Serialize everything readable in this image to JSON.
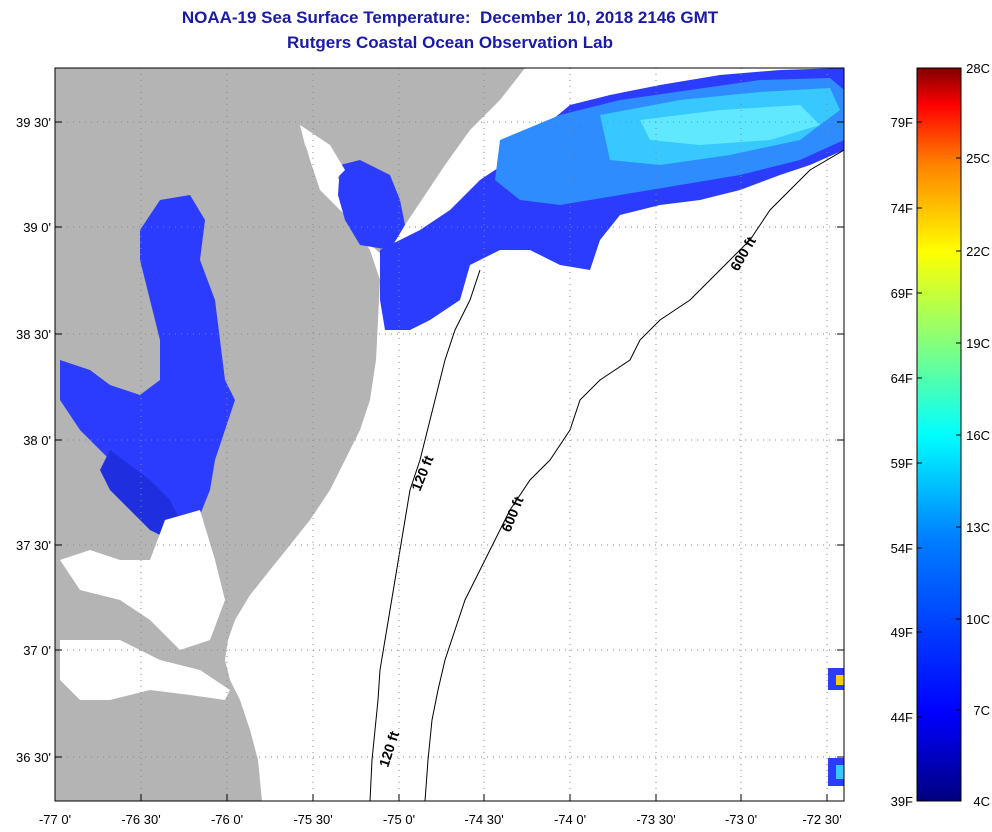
{
  "title_line1": "NOAA-19 Sea Surface Temperature:  December 10, 2018 2146 GMT",
  "title_line2": "Rutgers Coastal Ocean Observation Lab",
  "map": {
    "lat_labels": [
      "39 30'",
      "39 0'",
      "38 30'",
      "38 0'",
      "37 30'",
      "37 0'",
      "36 30'"
    ],
    "lon_labels": [
      "-77 0'",
      "-76 30'",
      "-76 0'",
      "-75 30'",
      "-75 0'",
      "-74 30'",
      "-74 0'",
      "-73 30'",
      "-73 0'",
      "-72 30'"
    ],
    "contour_labels": [
      "600 ft",
      "120 ft",
      "600 ft",
      "120 ft"
    ],
    "land_color": "#b4b4b4",
    "water_color": "#2b3cff",
    "warm_water_color": "#36c8ff"
  },
  "colorbar": {
    "fahrenheit_labels": [
      "79F",
      "74F",
      "69F",
      "64F",
      "59F",
      "54F",
      "49F",
      "44F",
      "39F"
    ],
    "celsius_labels": [
      "28C",
      "25C",
      "22C",
      "19C",
      "16C",
      "13C",
      "10C",
      "7C",
      "4C"
    ],
    "gradient_colors": [
      "#800000",
      "#ff0000",
      "#ff8000",
      "#ffff00",
      "#80ff80",
      "#00ffff",
      "#0080ff",
      "#0000ff",
      "#000080"
    ]
  }
}
